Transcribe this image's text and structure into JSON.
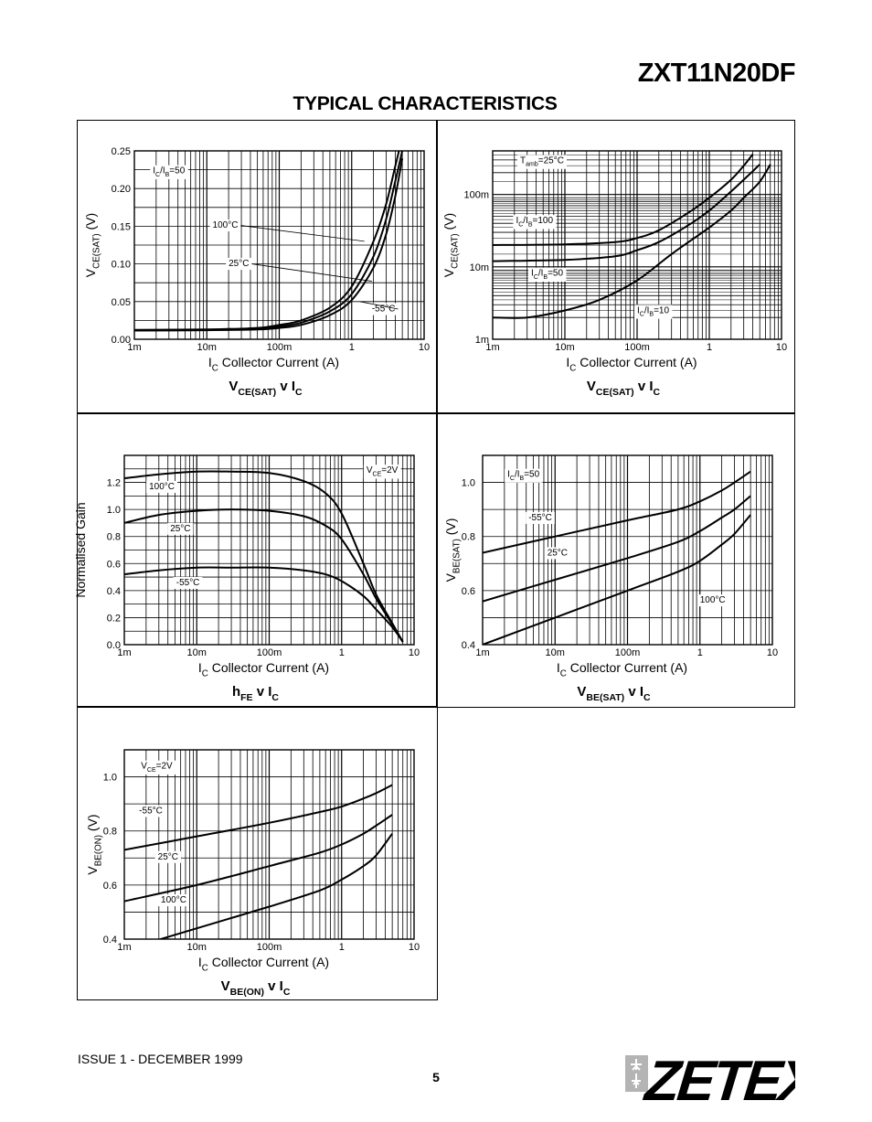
{
  "header": {
    "part_number": "ZXT11N20DF",
    "section_title": "TYPICAL CHARACTERISTICS"
  },
  "footer": {
    "issue": "ISSUE 1 - DECEMBER 1999",
    "page_number": "5",
    "logo_text": "ZETEX"
  },
  "colors": {
    "ink": "#000000",
    "grid": "#000000",
    "logo_gray": "#b4b4b4"
  },
  "chart_data": [
    {
      "id": "vcesat-linear",
      "type": "line",
      "title": [
        {
          "t": "V"
        },
        {
          "t": "CE(SAT)",
          "sub": true
        },
        {
          "t": " v I"
        },
        {
          "t": "C",
          "sub": true
        }
      ],
      "xlabel": [
        {
          "t": "I"
        },
        {
          "t": "C",
          "sub": true
        },
        {
          "t": "   Collector Current (A)"
        }
      ],
      "ylabel": [
        {
          "t": "V"
        },
        {
          "t": "CE(SAT)",
          "sub": true
        },
        {
          "t": "  (V)"
        }
      ],
      "xscale": "log",
      "xlim": [
        0.001,
        10
      ],
      "yscale": "linear",
      "ylim": [
        0,
        0.25
      ],
      "xticks": [
        0.001,
        0.01,
        0.1,
        1,
        10
      ],
      "xticklabels": [
        "1m",
        "10m",
        "100m",
        "1",
        "10"
      ],
      "yticks": [
        0,
        0.05,
        0.1,
        0.15,
        0.2,
        0.25
      ],
      "yticklabels": [
        "0.00",
        "0.05",
        "0.10",
        "0.15",
        "0.20",
        "0.25"
      ],
      "grid": true,
      "annotations": [
        {
          "text": [
            {
              "t": "I"
            },
            {
              "t": "C",
              "sub": true
            },
            {
              "t": "/I"
            },
            {
              "t": "B",
              "sub": true
            },
            {
              "t": "=50"
            }
          ],
          "x": 0.0018,
          "y": 0.22
        },
        {
          "text": [
            {
              "t": "100°C"
            }
          ],
          "x": 0.012,
          "y": 0.148,
          "leader": [
            1.5,
            0.13
          ]
        },
        {
          "text": [
            {
              "t": "25°C"
            }
          ],
          "x": 0.02,
          "y": 0.097,
          "leader": [
            1.9,
            0.077
          ]
        },
        {
          "text": [
            {
              "t": "-55°C"
            }
          ],
          "x": 1.9,
          "y": 0.037,
          "leader": [
            1.3,
            0.05
          ]
        }
      ],
      "series": [
        {
          "name": "100°C",
          "x": [
            0.001,
            0.01,
            0.05,
            0.1,
            0.2,
            0.5,
            1,
            2,
            3,
            4,
            4.5
          ],
          "y": [
            0.0125,
            0.013,
            0.015,
            0.019,
            0.025,
            0.042,
            0.07,
            0.13,
            0.18,
            0.23,
            0.25
          ]
        },
        {
          "name": "25°C",
          "x": [
            0.001,
            0.01,
            0.05,
            0.1,
            0.2,
            0.5,
            1,
            2,
            3,
            4,
            5
          ],
          "y": [
            0.012,
            0.0125,
            0.014,
            0.017,
            0.022,
            0.037,
            0.06,
            0.11,
            0.16,
            0.21,
            0.25
          ]
        },
        {
          "name": "-55°C",
          "x": [
            0.001,
            0.01,
            0.05,
            0.1,
            0.2,
            0.5,
            1,
            2,
            3,
            4,
            5
          ],
          "y": [
            0.0115,
            0.012,
            0.013,
            0.015,
            0.019,
            0.032,
            0.052,
            0.095,
            0.14,
            0.19,
            0.24
          ]
        }
      ]
    },
    {
      "id": "vcesat-log",
      "type": "line",
      "title": [
        {
          "t": "V"
        },
        {
          "t": "CE(SAT)",
          "sub": true
        },
        {
          "t": " v I"
        },
        {
          "t": "C",
          "sub": true
        }
      ],
      "xlabel": [
        {
          "t": "I"
        },
        {
          "t": "C",
          "sub": true
        },
        {
          "t": "   Collector Current (A)"
        }
      ],
      "ylabel": [
        {
          "t": "V"
        },
        {
          "t": "CE(SAT)",
          "sub": true
        },
        {
          "t": "  (V)"
        }
      ],
      "xscale": "log",
      "xlim": [
        0.001,
        10
      ],
      "yscale": "log",
      "ylim": [
        0.001,
        0.4
      ],
      "xticks": [
        0.001,
        0.01,
        0.1,
        1,
        10
      ],
      "xticklabels": [
        "1m",
        "10m",
        "100m",
        "1",
        "10"
      ],
      "yticks": [
        0.001,
        0.01,
        0.1
      ],
      "yticklabels": [
        "1m",
        "10m",
        "100m"
      ],
      "grid": true,
      "annotations": [
        {
          "text": [
            {
              "t": "T"
            },
            {
              "t": "amb",
              "sub": true
            },
            {
              "t": "=25°C"
            }
          ],
          "x": 0.0024,
          "y": 0.27
        },
        {
          "text": [
            {
              "t": "I"
            },
            {
              "t": "C",
              "sub": true
            },
            {
              "t": "/I"
            },
            {
              "t": "B",
              "sub": true
            },
            {
              "t": "=100"
            }
          ],
          "x": 0.0021,
          "y": 0.04
        },
        {
          "text": [
            {
              "t": "I"
            },
            {
              "t": "C",
              "sub": true
            },
            {
              "t": "/I"
            },
            {
              "t": "B",
              "sub": true
            },
            {
              "t": "=50"
            }
          ],
          "x": 0.0034,
          "y": 0.0075
        },
        {
          "text": [
            {
              "t": "I"
            },
            {
              "t": "C",
              "sub": true
            },
            {
              "t": "/I"
            },
            {
              "t": "B",
              "sub": true
            },
            {
              "t": "=10"
            }
          ],
          "x": 0.1,
          "y": 0.0023
        }
      ],
      "series": [
        {
          "name": "I_C/I_B=100",
          "x": [
            0.001,
            0.01,
            0.05,
            0.1,
            0.2,
            0.5,
            1,
            2,
            3,
            4
          ],
          "y": [
            0.02,
            0.0205,
            0.022,
            0.025,
            0.032,
            0.055,
            0.09,
            0.16,
            0.25,
            0.36
          ]
        },
        {
          "name": "I_C/I_B=50",
          "x": [
            0.001,
            0.01,
            0.05,
            0.1,
            0.2,
            0.5,
            1,
            2,
            3,
            4,
            5
          ],
          "y": [
            0.012,
            0.0125,
            0.014,
            0.017,
            0.022,
            0.037,
            0.06,
            0.11,
            0.16,
            0.21,
            0.26
          ]
        },
        {
          "name": "I_C/I_B=10",
          "x": [
            0.001,
            0.003,
            0.01,
            0.03,
            0.1,
            0.3,
            1,
            2,
            3,
            5,
            7
          ],
          "y": [
            0.002,
            0.002,
            0.0025,
            0.0035,
            0.0065,
            0.015,
            0.035,
            0.06,
            0.09,
            0.15,
            0.26
          ]
        }
      ]
    },
    {
      "id": "hfe",
      "type": "line",
      "title": [
        {
          "t": "h"
        },
        {
          "t": "FE",
          "sub": true
        },
        {
          "t": " v I"
        },
        {
          "t": "C",
          "sub": true
        }
      ],
      "xlabel": [
        {
          "t": "I"
        },
        {
          "t": "C",
          "sub": true
        },
        {
          "t": "   Collector Current (A)"
        }
      ],
      "ylabel": [
        {
          "t": "Normalised Gain"
        }
      ],
      "xscale": "log",
      "xlim": [
        0.001,
        10
      ],
      "yscale": "linear",
      "ylim": [
        0,
        1.4
      ],
      "xticks": [
        0.001,
        0.01,
        0.1,
        1,
        10
      ],
      "xticklabels": [
        "1m",
        "10m",
        "100m",
        "1",
        "10"
      ],
      "yticks": [
        0,
        0.2,
        0.4,
        0.6,
        0.8,
        1.0,
        1.2
      ],
      "yticklabels": [
        "0.0",
        "0.2",
        "0.4",
        "0.6",
        "0.8",
        "1.0",
        "1.2"
      ],
      "grid": true,
      "annotations": [
        {
          "text": [
            {
              "t": "V"
            },
            {
              "t": "CE",
              "sub": true
            },
            {
              "t": "=2V"
            }
          ],
          "x": 2.2,
          "y": 1.27
        },
        {
          "text": [
            {
              "t": "100°C"
            }
          ],
          "x": 0.0022,
          "y": 1.15
        },
        {
          "text": [
            {
              "t": "25°C"
            }
          ],
          "x": 0.0043,
          "y": 0.84
        },
        {
          "text": [
            {
              "t": "-55°C"
            }
          ],
          "x": 0.0052,
          "y": 0.44
        }
      ],
      "series": [
        {
          "name": "100°C",
          "x": [
            0.001,
            0.003,
            0.01,
            0.03,
            0.1,
            0.3,
            0.6,
            1,
            2,
            3,
            5,
            7
          ],
          "y": [
            1.23,
            1.26,
            1.28,
            1.28,
            1.27,
            1.21,
            1.12,
            0.97,
            0.6,
            0.37,
            0.16,
            0.02
          ]
        },
        {
          "name": "25°C",
          "x": [
            0.001,
            0.003,
            0.01,
            0.03,
            0.1,
            0.3,
            0.6,
            1,
            2,
            3,
            5,
            7
          ],
          "y": [
            0.9,
            0.96,
            0.99,
            1.0,
            0.99,
            0.95,
            0.88,
            0.78,
            0.52,
            0.34,
            0.15,
            0.02
          ]
        },
        {
          "name": "-55°C",
          "x": [
            0.001,
            0.003,
            0.01,
            0.03,
            0.1,
            0.3,
            0.6,
            1,
            2,
            3,
            5,
            7
          ],
          "y": [
            0.52,
            0.55,
            0.57,
            0.57,
            0.57,
            0.55,
            0.52,
            0.47,
            0.36,
            0.26,
            0.13,
            0.02
          ]
        }
      ]
    },
    {
      "id": "vbesat",
      "type": "line",
      "title": [
        {
          "t": "V"
        },
        {
          "t": "BE(SAT)",
          "sub": true
        },
        {
          "t": " v I"
        },
        {
          "t": "C",
          "sub": true
        }
      ],
      "xlabel": [
        {
          "t": "I"
        },
        {
          "t": "C",
          "sub": true
        },
        {
          "t": "   Collector Current (A)"
        }
      ],
      "ylabel": [
        {
          "t": "V"
        },
        {
          "t": "BE(SAT)",
          "sub": true
        },
        {
          "t": " (V)"
        }
      ],
      "xscale": "log",
      "xlim": [
        0.001,
        10
      ],
      "yscale": "linear",
      "ylim": [
        0.4,
        1.1
      ],
      "xticks": [
        0.001,
        0.01,
        0.1,
        1,
        10
      ],
      "xticklabels": [
        "1m",
        "10m",
        "100m",
        "1",
        "10"
      ],
      "yticks": [
        0.4,
        0.6,
        0.8,
        1.0
      ],
      "yticklabels": [
        "0.4",
        "0.6",
        "0.8",
        "1.0"
      ],
      "grid": true,
      "annotations": [
        {
          "text": [
            {
              "t": "I"
            },
            {
              "t": "C",
              "sub": true
            },
            {
              "t": "/I"
            },
            {
              "t": "B",
              "sub": true
            },
            {
              "t": "=50"
            }
          ],
          "x": 0.0022,
          "y": 1.02
        },
        {
          "text": [
            {
              "t": "-55°C"
            }
          ],
          "x": 0.0043,
          "y": 0.86
        },
        {
          "text": [
            {
              "t": "25°C"
            }
          ],
          "x": 0.0078,
          "y": 0.73
        },
        {
          "text": [
            {
              "t": "100°C"
            }
          ],
          "x": 1.0,
          "y": 0.555
        }
      ],
      "series": [
        {
          "name": "-55°C",
          "x": [
            0.001,
            0.01,
            0.1,
            0.5,
            1,
            2,
            3,
            5
          ],
          "y": [
            0.74,
            0.8,
            0.86,
            0.9,
            0.93,
            0.97,
            1.0,
            1.04
          ]
        },
        {
          "name": "25°C",
          "x": [
            0.001,
            0.01,
            0.1,
            0.5,
            1,
            2,
            3,
            5
          ],
          "y": [
            0.56,
            0.64,
            0.72,
            0.78,
            0.82,
            0.87,
            0.9,
            0.95
          ]
        },
        {
          "name": "100°C",
          "x": [
            0.001,
            0.01,
            0.1,
            0.5,
            1,
            2,
            3,
            5
          ],
          "y": [
            0.4,
            0.5,
            0.6,
            0.67,
            0.71,
            0.77,
            0.81,
            0.88
          ]
        }
      ]
    },
    {
      "id": "vbeon",
      "type": "line",
      "title": [
        {
          "t": "V"
        },
        {
          "t": "BE(ON)",
          "sub": true
        },
        {
          "t": " v I"
        },
        {
          "t": "C",
          "sub": true
        }
      ],
      "xlabel": [
        {
          "t": "I"
        },
        {
          "t": "C",
          "sub": true
        },
        {
          "t": "   Collector Current (A)"
        }
      ],
      "ylabel": [
        {
          "t": "V"
        },
        {
          "t": "BE(ON)",
          "sub": true
        },
        {
          "t": " (V)"
        }
      ],
      "xscale": "log",
      "xlim": [
        0.001,
        10
      ],
      "yscale": "linear",
      "ylim": [
        0.4,
        1.1
      ],
      "xticks": [
        0.001,
        0.01,
        0.1,
        1,
        10
      ],
      "xticklabels": [
        "1m",
        "10m",
        "100m",
        "1",
        "10"
      ],
      "yticks": [
        0.4,
        0.6,
        0.8,
        1.0
      ],
      "yticklabels": [
        "0.4",
        "0.6",
        "0.8",
        "1.0"
      ],
      "grid": true,
      "annotations": [
        {
          "text": [
            {
              "t": "V"
            },
            {
              "t": "CE",
              "sub": true
            },
            {
              "t": "=2V"
            }
          ],
          "x": 0.0017,
          "y": 1.03
        },
        {
          "text": [
            {
              "t": "-55°C"
            }
          ],
          "x": 0.0016,
          "y": 0.865
        },
        {
          "text": [
            {
              "t": "25°C"
            }
          ],
          "x": 0.0029,
          "y": 0.695
        },
        {
          "text": [
            {
              "t": "100°C"
            }
          ],
          "x": 0.0032,
          "y": 0.535
        }
      ],
      "series": [
        {
          "name": "-55°C",
          "x": [
            0.001,
            0.01,
            0.1,
            0.5,
            1,
            2,
            3,
            5
          ],
          "y": [
            0.73,
            0.78,
            0.83,
            0.87,
            0.89,
            0.92,
            0.94,
            0.97
          ]
        },
        {
          "name": "25°C",
          "x": [
            0.001,
            0.01,
            0.1,
            0.5,
            1,
            2,
            3,
            5
          ],
          "y": [
            0.54,
            0.6,
            0.67,
            0.72,
            0.75,
            0.79,
            0.82,
            0.86
          ]
        },
        {
          "name": "100°C",
          "x": [
            0.001,
            0.01,
            0.1,
            0.5,
            1,
            2,
            3,
            5
          ],
          "y": [
            0.36,
            0.44,
            0.52,
            0.58,
            0.62,
            0.67,
            0.71,
            0.79
          ]
        }
      ]
    }
  ]
}
